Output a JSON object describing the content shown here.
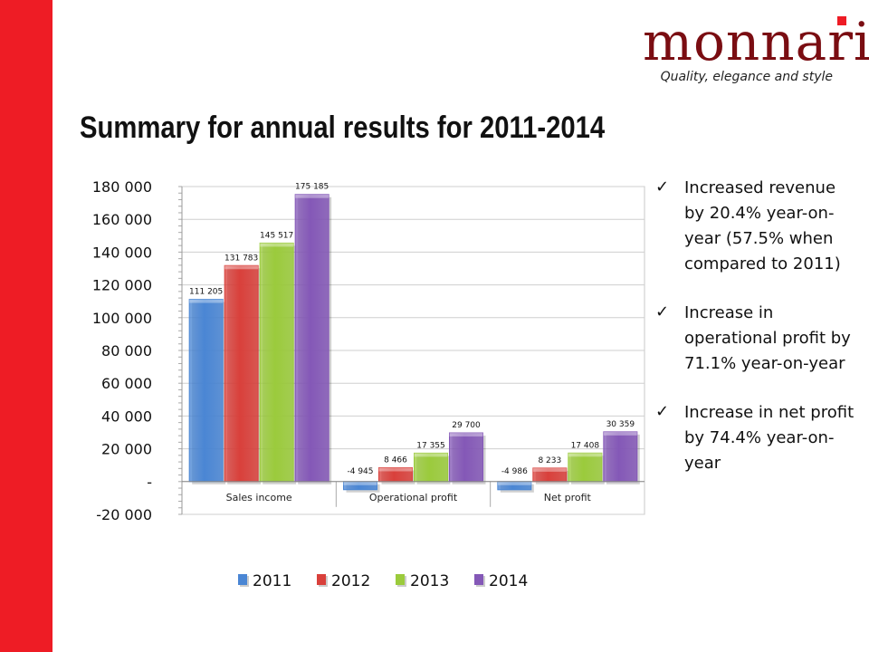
{
  "brand": {
    "name": "monnari",
    "tagline": "Quality, elegance and style",
    "accent": "#ee1c25",
    "logo_color": "#7a0d12"
  },
  "page": {
    "title": "Summary for annual results for 2011-2014"
  },
  "bullets": [
    {
      "icon": "check-icon",
      "text": "Increased revenue by 20.4% year-on-year (57.5% when compared to 2011)"
    },
    {
      "icon": "check-icon",
      "text": "Increase in operational profit by 71.1% year-on-year"
    },
    {
      "icon": "check-icon",
      "text": "Increase in net profit by 74.4% year-on-year"
    }
  ],
  "chart_data": {
    "type": "bar",
    "categories": [
      "Sales income",
      "Operational profit",
      "Net profit"
    ],
    "series": [
      {
        "name": "2011",
        "color": "#4a86d4",
        "values": [
          111205,
          -4945,
          -4986
        ],
        "labels": [
          "111 205",
          "-4 945",
          "-4 986"
        ]
      },
      {
        "name": "2012",
        "color": "#d9403b",
        "values": [
          131783,
          8466,
          8233
        ],
        "labels": [
          "131 783",
          "8 466",
          "8 233"
        ]
      },
      {
        "name": "2013",
        "color": "#9bcb3c",
        "values": [
          145517,
          17355,
          17408
        ],
        "labels": [
          "145 517",
          "17 355",
          "17 408"
        ]
      },
      {
        "name": "2014",
        "color": "#8458b7",
        "values": [
          175185,
          29700,
          30359
        ],
        "labels": [
          "175 185",
          "29 700",
          "30 359"
        ]
      }
    ],
    "ylim": [
      -20000,
      180000
    ],
    "yticks": [
      {
        "value": 180000,
        "label": "180 000"
      },
      {
        "value": 160000,
        "label": "160 000"
      },
      {
        "value": 140000,
        "label": "140 000"
      },
      {
        "value": 120000,
        "label": "120 000"
      },
      {
        "value": 100000,
        "label": "100 000"
      },
      {
        "value": 80000,
        "label": "80 000"
      },
      {
        "value": 60000,
        "label": "60 000"
      },
      {
        "value": 40000,
        "label": "40 000"
      },
      {
        "value": 20000,
        "label": "20 000"
      },
      {
        "value": 0,
        "label": "-"
      },
      {
        "value": -20000,
        "label": "-20 000"
      }
    ],
    "grid": true,
    "legend_position": "bottom"
  }
}
